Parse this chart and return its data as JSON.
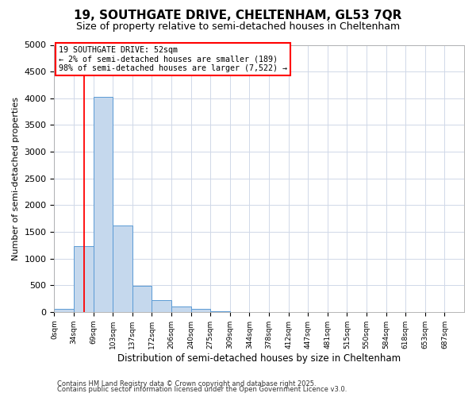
{
  "title": "19, SOUTHGATE DRIVE, CHELTENHAM, GL53 7QR",
  "subtitle": "Size of property relative to semi-detached houses in Cheltenham",
  "xlabel": "Distribution of semi-detached houses by size in Cheltenham",
  "ylabel": "Number of semi-detached properties",
  "bar_labels": [
    "0sqm",
    "34sqm",
    "69sqm",
    "103sqm",
    "137sqm",
    "172sqm",
    "206sqm",
    "240sqm",
    "275sqm",
    "309sqm",
    "344sqm",
    "378sqm",
    "412sqm",
    "447sqm",
    "481sqm",
    "515sqm",
    "550sqm",
    "584sqm",
    "618sqm",
    "653sqm",
    "687sqm"
  ],
  "bar_values": [
    50,
    1230,
    4020,
    1620,
    490,
    215,
    105,
    50,
    10,
    0,
    0,
    0,
    0,
    0,
    0,
    0,
    0,
    0,
    0,
    0,
    0
  ],
  "bar_color": "#c5d8ed",
  "bar_edge_color": "#5b9bd5",
  "vline_x": 1.52,
  "vline_color": "red",
  "ylim": [
    0,
    5000
  ],
  "yticks": [
    0,
    500,
    1000,
    1500,
    2000,
    2500,
    3000,
    3500,
    4000,
    4500,
    5000
  ],
  "annotation_title": "19 SOUTHGATE DRIVE: 52sqm",
  "annotation_line1": "← 2% of semi-detached houses are smaller (189)",
  "annotation_line2": "98% of semi-detached houses are larger (7,522) →",
  "footer1": "Contains HM Land Registry data © Crown copyright and database right 2025.",
  "footer2": "Contains public sector information licensed under the Open Government Licence v3.0.",
  "background_color": "#ffffff",
  "grid_color": "#d0d8e8"
}
